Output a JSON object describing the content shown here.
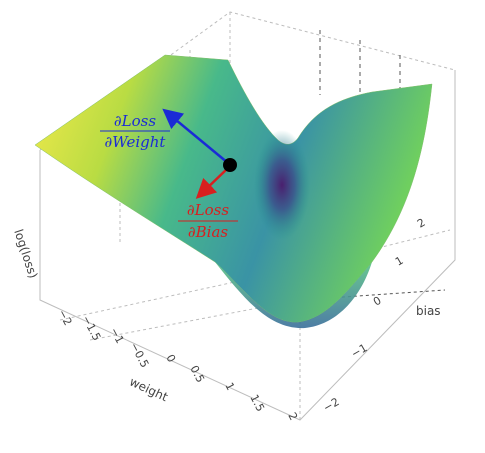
{
  "axes": {
    "z_title": "log(loss)",
    "x_title": "weight",
    "y_title": "bias",
    "x_ticks": [
      "−2",
      "−1.5",
      "−1",
      "−0.5",
      "0",
      "0.5",
      "1",
      "1.5",
      "2"
    ],
    "y_ticks": [
      "−2",
      "−1",
      "0",
      "1",
      "2"
    ]
  },
  "gradients": {
    "weight": {
      "numerator": "∂Loss",
      "denominator": "∂Weight",
      "color": "#1a2bd6"
    },
    "bias": {
      "numerator": "∂Loss",
      "denominator": "∂Bias",
      "color": "#d81f1f"
    }
  },
  "colors": {
    "surface_high": "#f7e94a",
    "surface_mid": "#3bb48a",
    "surface_low": "#4a1f6e",
    "point": "#000000"
  }
}
